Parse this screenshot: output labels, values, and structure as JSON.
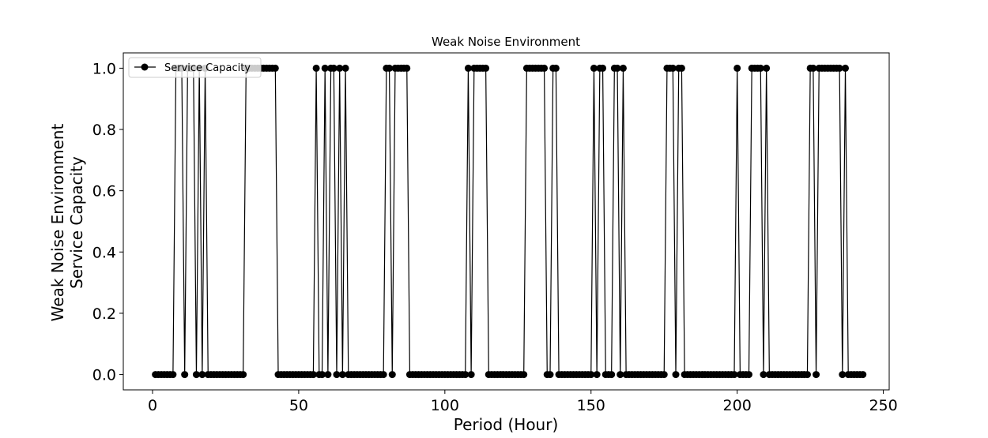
{
  "chart_data": {
    "type": "line",
    "title": "Weak Noise Environment",
    "xlabel": "Period (Hour)",
    "ylabel_lines": [
      "Weak Noise Environment",
      "Service Capacity"
    ],
    "xlim": [
      -10,
      252
    ],
    "ylim": [
      -0.05,
      1.05
    ],
    "xticks": [
      0,
      50,
      100,
      150,
      200,
      250
    ],
    "xtick_labels": [
      "0",
      "50",
      "100",
      "150",
      "200",
      "250"
    ],
    "yticks": [
      0.0,
      0.2,
      0.4,
      0.6,
      0.8,
      1.0
    ],
    "ytick_labels": [
      "0.0",
      "0.2",
      "0.4",
      "0.6",
      "0.8",
      "1.0"
    ],
    "grid": false,
    "legend_position": "top-left",
    "series": [
      {
        "name": "Service Capacity",
        "color": "#000000",
        "marker": "circle",
        "x_start": 1,
        "values": [
          0,
          0,
          0,
          0,
          0,
          0,
          0,
          1,
          1,
          1,
          0,
          1,
          1,
          1,
          0,
          1,
          0,
          1,
          0,
          0,
          0,
          0,
          0,
          0,
          0,
          0,
          0,
          0,
          0,
          0,
          0,
          1,
          1,
          1,
          1,
          1,
          1,
          1,
          1,
          1,
          1,
          1,
          0,
          0,
          0,
          0,
          0,
          0,
          0,
          0,
          0,
          0,
          0,
          0,
          0,
          1,
          0,
          0,
          1,
          0,
          1,
          1,
          0,
          1,
          0,
          1,
          0,
          0,
          0,
          0,
          0,
          0,
          0,
          0,
          0,
          0,
          0,
          0,
          0,
          1,
          1,
          0,
          1,
          1,
          1,
          1,
          1,
          0,
          0,
          0,
          0,
          0,
          0,
          0,
          0,
          0,
          0,
          0,
          0,
          0,
          0,
          0,
          0,
          0,
          0,
          0,
          0,
          1,
          0,
          1,
          1,
          1,
          1,
          1,
          0,
          0,
          0,
          0,
          0,
          0,
          0,
          0,
          0,
          0,
          0,
          0,
          0,
          1,
          1,
          1,
          1,
          1,
          1,
          1,
          0,
          0,
          1,
          1,
          0,
          0,
          0,
          0,
          0,
          0,
          0,
          0,
          0,
          0,
          0,
          0,
          1,
          0,
          1,
          1,
          0,
          0,
          0,
          1,
          1,
          0,
          1,
          0,
          0,
          0,
          0,
          0,
          0,
          0,
          0,
          0,
          0,
          0,
          0,
          0,
          0,
          1,
          1,
          1,
          0,
          1,
          1,
          0,
          0,
          0,
          0,
          0,
          0,
          0,
          0,
          0,
          0,
          0,
          0,
          0,
          0,
          0,
          0,
          0,
          0,
          1,
          0,
          0,
          0,
          0,
          1,
          1,
          1,
          1,
          0,
          1,
          0,
          0,
          0,
          0,
          0,
          0,
          0,
          0,
          0,
          0,
          0,
          0,
          0,
          0,
          1,
          1,
          0,
          1,
          1,
          1,
          1,
          1,
          1,
          1,
          1,
          0,
          1,
          0,
          0,
          0,
          0,
          0,
          0
        ]
      }
    ]
  }
}
